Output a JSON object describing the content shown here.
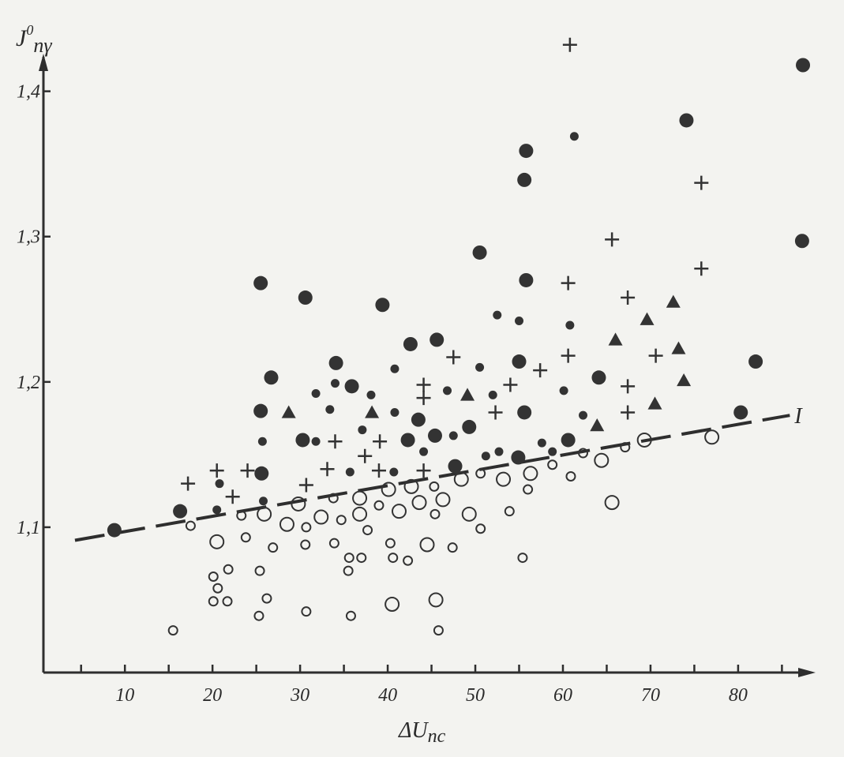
{
  "chart_data": {
    "type": "scatter",
    "xlabel": {
      "main": "ΔU",
      "sub": "nc"
    },
    "ylabel": {
      "main": "J",
      "sup": "0",
      "sub": "nγ"
    },
    "xlim": [
      0.7,
      88.3
    ],
    "ylim": [
      1.0,
      1.44
    ],
    "xticks": [
      10,
      20,
      30,
      40,
      50,
      60,
      70,
      80
    ],
    "xminor_ticks": [
      5,
      15,
      25,
      35,
      45,
      55,
      65,
      75,
      85
    ],
    "yticks": [
      {
        "value": 1.1,
        "label": "1,1"
      },
      {
        "value": 1.2,
        "label": "1,2"
      },
      {
        "value": 1.3,
        "label": "1,3"
      },
      {
        "value": 1.4,
        "label": "1,4"
      }
    ],
    "color": "#2e2e2e",
    "series": [
      {
        "marker": "filled-circle",
        "size": 9,
        "color": "#333333",
        "x": [
          8.8,
          16.3,
          25.5,
          26.7,
          25.5,
          30.6,
          34.1,
          35.9,
          39.4,
          42.6,
          45.6,
          50.5,
          55.8,
          55.6,
          55.8,
          55.0,
          55.6,
          54.9,
          47.7,
          45.4,
          43.5,
          42.3,
          49.3,
          60.6,
          64.1,
          74.1,
          87.4,
          87.3,
          82.0,
          80.3,
          30.3,
          25.6
        ],
        "values": [
          1.098,
          1.111,
          1.268,
          1.203,
          1.18,
          1.258,
          1.213,
          1.197,
          1.253,
          1.226,
          1.229,
          1.289,
          1.359,
          1.339,
          1.27,
          1.214,
          1.179,
          1.148,
          1.142,
          1.163,
          1.174,
          1.16,
          1.169,
          1.16,
          1.203,
          1.38,
          1.418,
          1.297,
          1.214,
          1.179,
          1.16,
          1.137
        ]
      },
      {
        "marker": "filled-circle",
        "size": 5.5,
        "color": "#333333",
        "x": [
          20.8,
          20.5,
          25.7,
          25.8,
          31.8,
          31.8,
          33.4,
          34.0,
          35.7,
          37.1,
          38.1,
          40.8,
          40.8,
          40.7,
          44.1,
          46.8,
          47.5,
          50.5,
          51.2,
          52.5,
          52.7,
          52.0,
          55.0,
          57.6,
          58.8,
          60.1,
          60.8,
          61.3,
          62.3
        ],
        "values": [
          1.13,
          1.112,
          1.159,
          1.118,
          1.192,
          1.159,
          1.181,
          1.199,
          1.138,
          1.167,
          1.191,
          1.209,
          1.179,
          1.138,
          1.152,
          1.194,
          1.163,
          1.21,
          1.149,
          1.246,
          1.152,
          1.191,
          1.242,
          1.158,
          1.152,
          1.194,
          1.239,
          1.369,
          1.177
        ]
      },
      {
        "marker": "cross",
        "size": 9,
        "color": "#333333",
        "x": [
          17.2,
          20.5,
          22.3,
          24.0,
          30.7,
          34.0,
          33.1,
          37.4,
          39.1,
          39.0,
          44.1,
          44.1,
          44.1,
          47.5,
          52.3,
          54.0,
          57.4,
          60.6,
          60.6,
          65.6,
          67.4,
          67.4,
          67.4,
          70.6,
          75.8,
          75.8,
          60.8
        ],
        "values": [
          1.13,
          1.139,
          1.121,
          1.139,
          1.129,
          1.159,
          1.14,
          1.149,
          1.159,
          1.139,
          1.198,
          1.189,
          1.139,
          1.217,
          1.179,
          1.198,
          1.208,
          1.218,
          1.268,
          1.298,
          1.258,
          1.197,
          1.179,
          1.218,
          1.278,
          1.337,
          1.432
        ]
      },
      {
        "marker": "triangle",
        "size": 9,
        "color": "#333333",
        "x": [
          28.7,
          38.2,
          49.1,
          63.9,
          66.0,
          69.6,
          72.6,
          73.2,
          73.8,
          70.5
        ],
        "values": [
          1.179,
          1.179,
          1.191,
          1.17,
          1.229,
          1.243,
          1.255,
          1.223,
          1.201,
          1.185
        ]
      },
      {
        "marker": "open-circle",
        "size": 8.5,
        "color": "#333333",
        "x": [
          20.5,
          25.9,
          28.5,
          29.8,
          32.4,
          36.8,
          36.8,
          40.1,
          41.3,
          42.7,
          43.6,
          46.3,
          44.5,
          40.5,
          45.5,
          48.4,
          49.3,
          53.2,
          56.3,
          64.4,
          65.6,
          69.3,
          77.0
        ],
        "values": [
          1.09,
          1.109,
          1.102,
          1.116,
          1.107,
          1.12,
          1.109,
          1.126,
          1.111,
          1.128,
          1.117,
          1.119,
          1.088,
          1.047,
          1.05,
          1.133,
          1.109,
          1.133,
          1.137,
          1.146,
          1.117,
          1.16,
          1.162
        ]
      },
      {
        "marker": "open-circle",
        "size": 5.5,
        "color": "#333333",
        "x": [
          15.5,
          17.5,
          20.1,
          20.6,
          20.1,
          21.7,
          21.8,
          23.3,
          23.8,
          25.4,
          25.3,
          26.2,
          26.9,
          30.7,
          30.6,
          30.7,
          33.8,
          33.9,
          34.7,
          35.5,
          35.6,
          35.8,
          37.0,
          37.7,
          39.0,
          40.3,
          40.6,
          42.3,
          45.3,
          45.4,
          45.8,
          47.4,
          50.6,
          50.6,
          53.9,
          55.4,
          56.0,
          58.8,
          60.9,
          62.3,
          67.1
        ],
        "values": [
          1.029,
          1.101,
          1.066,
          1.058,
          1.049,
          1.049,
          1.071,
          1.108,
          1.093,
          1.07,
          1.039,
          1.051,
          1.086,
          1.1,
          1.088,
          1.042,
          1.12,
          1.089,
          1.105,
          1.07,
          1.079,
          1.039,
          1.079,
          1.098,
          1.115,
          1.089,
          1.079,
          1.077,
          1.128,
          1.109,
          1.029,
          1.086,
          1.137,
          1.099,
          1.111,
          1.079,
          1.126,
          1.143,
          1.135,
          1.151,
          1.155
        ]
      }
    ],
    "trend": {
      "label": "I",
      "x": [
        4.3,
        85.9
      ],
      "values": [
        1.091,
        1.177
      ],
      "dash": "38 14"
    }
  }
}
